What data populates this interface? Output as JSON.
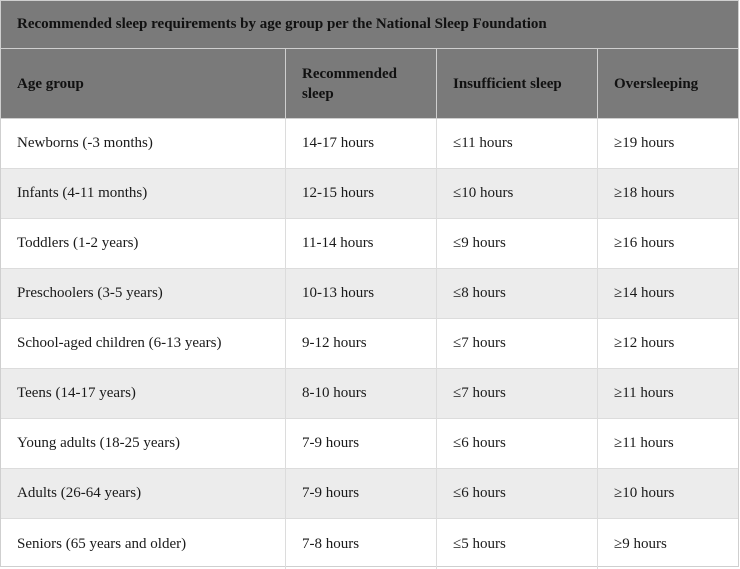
{
  "table": {
    "caption": "Recommended sleep requirements by age group per the National Sleep Foundation",
    "headers": [
      "Age group",
      "Recommended sleep",
      "Insufficient sleep",
      "Oversleeping"
    ],
    "rows": [
      [
        "Newborns (-3 months)",
        "14-17 hours",
        "≤11 hours",
        "≥19 hours"
      ],
      [
        "Infants (4-11 months)",
        "12-15 hours",
        "≤10 hours",
        "≥18 hours"
      ],
      [
        "Toddlers (1-2 years)",
        "11-14 hours",
        "≤9 hours",
        "≥16 hours"
      ],
      [
        "Preschoolers (3-5 years)",
        "10-13 hours",
        "≤8 hours",
        "≥14 hours"
      ],
      [
        "School-aged children (6-13 years)",
        "9-12 hours",
        "≤7 hours",
        "≥12 hours"
      ],
      [
        "Teens (14-17 years)",
        "8-10 hours",
        "≤7 hours",
        "≥11 hours"
      ],
      [
        "Young adults (18-25 years)",
        "7-9 hours",
        "≤6 hours",
        "≥11 hours"
      ],
      [
        "Adults (26-64 years)",
        "7-9 hours",
        "≤6 hours",
        "≥10 hours"
      ],
      [
        "Seniors (65 years and older)",
        "7-8 hours",
        "≤5 hours",
        "≥9 hours"
      ]
    ]
  },
  "colors": {
    "header_bg": "#7a7a7a",
    "alt_row_bg": "#ececec",
    "border": "#cfcfcf"
  }
}
